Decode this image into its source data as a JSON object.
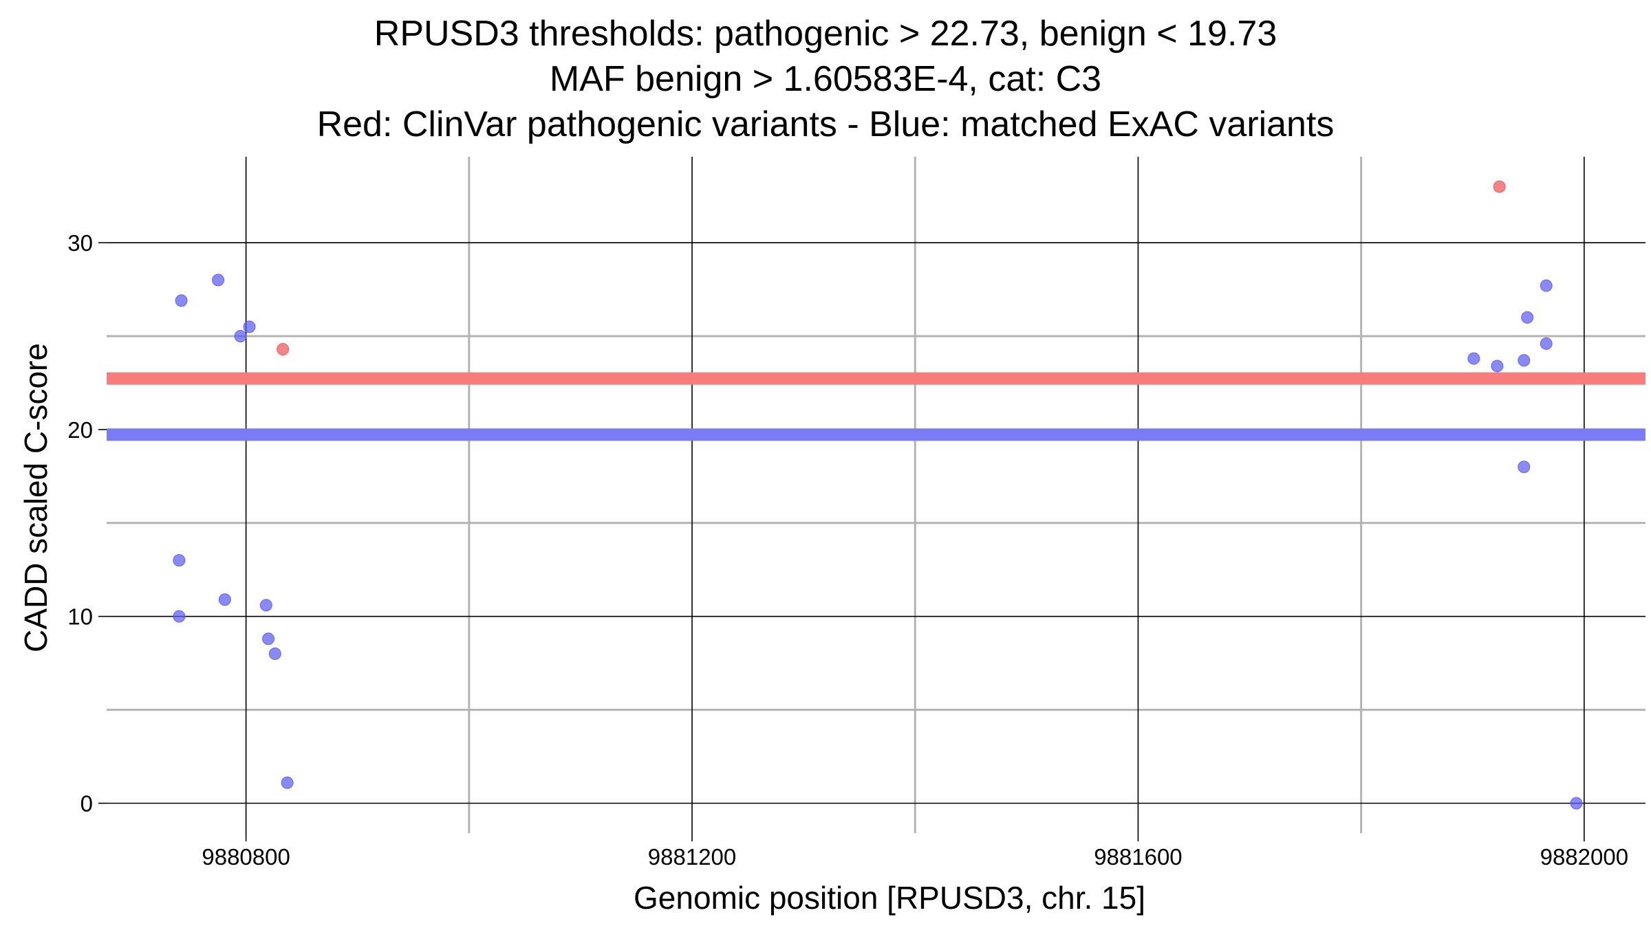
{
  "chart_data": {
    "type": "scatter",
    "title_lines": [
      "RPUSD3 thresholds: pathogenic > 22.73, benign < 19.73",
      "MAF benign > 1.60583E-4, cat: C3",
      "Red: ClinVar pathogenic variants - Blue: matched ExAC variants"
    ],
    "xlabel": "Genomic position [RPUSD3, chr. 15]",
    "ylabel": "CADD scaled C-score",
    "xlim": [
      9880675,
      9882055
    ],
    "ylim": [
      -1.6,
      34.6
    ],
    "x_ticks": [
      9880800,
      9881200,
      9881600,
      9882000
    ],
    "y_ticks": [
      0,
      10,
      20,
      30
    ],
    "x_minor": [
      9881000,
      9881400,
      9881800
    ],
    "y_minor": [
      5,
      15,
      25
    ],
    "grid": true,
    "thresholds": [
      {
        "name": "pathogenic",
        "value": 22.73,
        "color": "#f87c7c"
      },
      {
        "name": "benign",
        "value": 19.73,
        "color": "#7b7bf7"
      }
    ],
    "series": [
      {
        "name": "ClinVar pathogenic variants",
        "color": "#f0555a",
        "points": [
          {
            "x": 9880833,
            "y": 24.3
          },
          {
            "x": 9881924,
            "y": 33.0
          }
        ]
      },
      {
        "name": "matched ExAC variants",
        "color": "#5b5bf5",
        "points": [
          {
            "x": 9880742,
            "y": 26.9
          },
          {
            "x": 9880775,
            "y": 28.0
          },
          {
            "x": 9880795,
            "y": 25.0
          },
          {
            "x": 9880803,
            "y": 25.5
          },
          {
            "x": 9880740,
            "y": 13.0
          },
          {
            "x": 9880740,
            "y": 10.0
          },
          {
            "x": 9880781,
            "y": 10.9
          },
          {
            "x": 9880818,
            "y": 10.6
          },
          {
            "x": 9880820,
            "y": 8.8
          },
          {
            "x": 9880826,
            "y": 8.0
          },
          {
            "x": 9880837,
            "y": 1.1
          },
          {
            "x": 9881901,
            "y": 23.8
          },
          {
            "x": 9881922,
            "y": 23.4
          },
          {
            "x": 9881946,
            "y": 23.7
          },
          {
            "x": 9881949,
            "y": 26.0
          },
          {
            "x": 9881966,
            "y": 27.7
          },
          {
            "x": 9881966,
            "y": 24.6
          },
          {
            "x": 9881946,
            "y": 18.0
          },
          {
            "x": 9881993,
            "y": 0.0
          }
        ]
      }
    ]
  }
}
